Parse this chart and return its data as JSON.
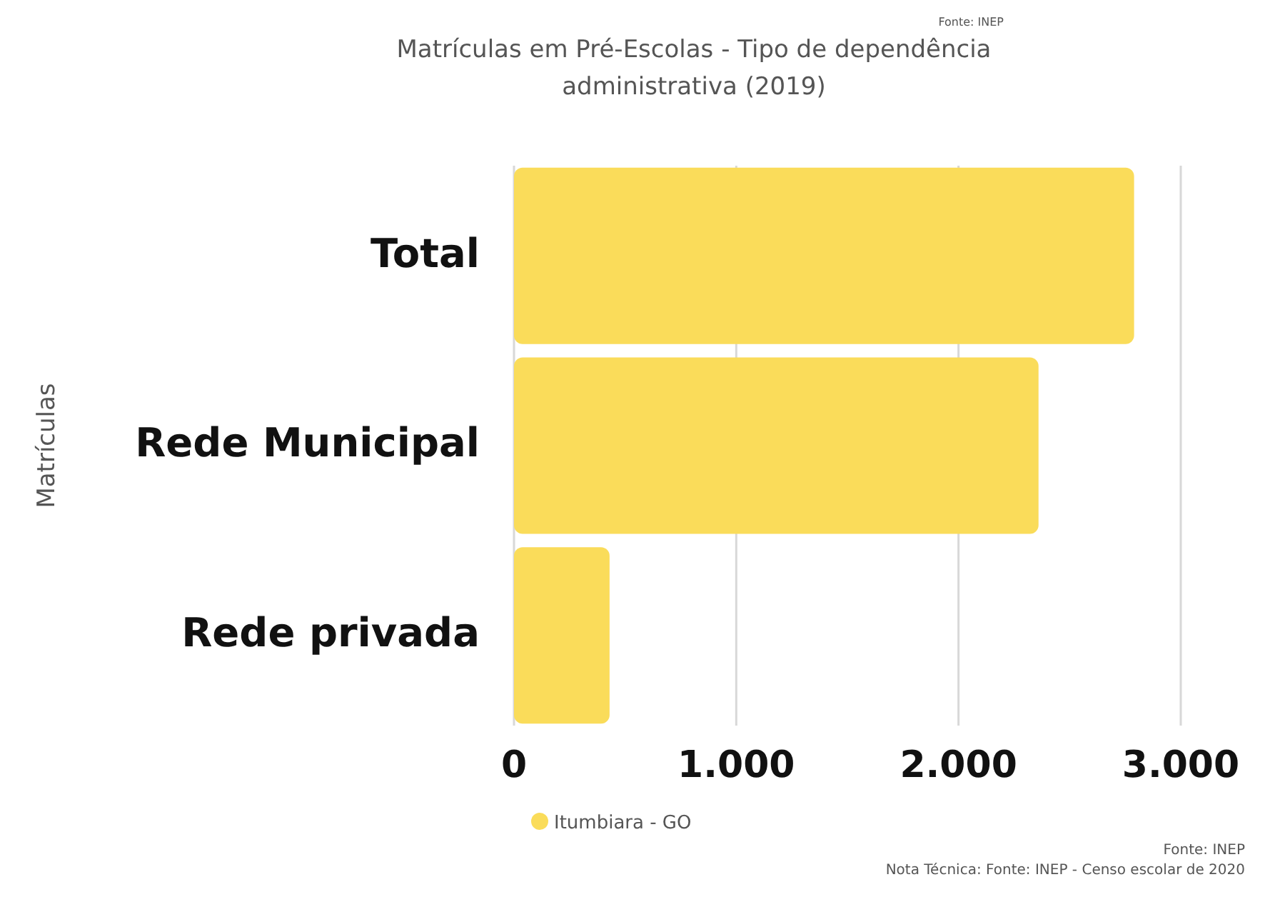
{
  "chart_data": {
    "type": "bar",
    "orientation": "horizontal",
    "title": "Matrículas em Pré-Escolas - Tipo de dependência administrativa (2019)",
    "ylabel": "Matrículas",
    "categories": [
      "Total",
      "Rede Municipal",
      "Rede privada"
    ],
    "series": [
      {
        "name": "Itumbiara - GO",
        "color": "#fadc5a",
        "values": [
          2790,
          2360,
          430
        ]
      }
    ],
    "xlim": [
      0,
      3000
    ],
    "xticks": [
      {
        "value": 0,
        "label": "0"
      },
      {
        "value": 1000,
        "label": "1.000"
      },
      {
        "value": 2000,
        "label": "2.000"
      },
      {
        "value": 3000,
        "label": "3.000"
      }
    ],
    "grid": "x",
    "legend": "bottom",
    "annotations": [
      "Fonte: INEP",
      "Fonte: INEP",
      "Nota Técnica: Fonte: INEP - Censo escolar de 2020"
    ]
  }
}
